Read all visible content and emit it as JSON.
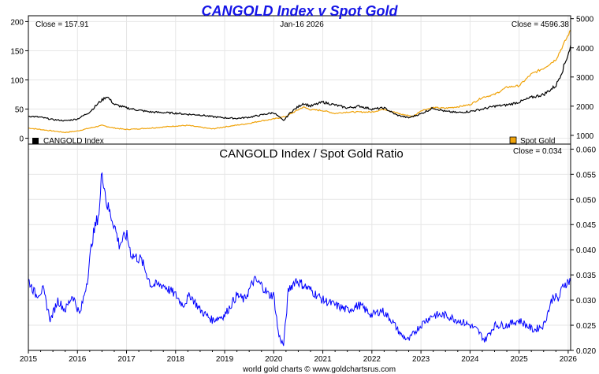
{
  "colors": {
    "cangold": "#000000",
    "gold": "#f0a30a",
    "ratio": "#0000ff",
    "title": "#1515e6",
    "grid": "#e6e6e6",
    "frame": "#000000"
  },
  "chart_data": [
    {
      "type": "line",
      "title": "CANGOLD Index v Spot Gold",
      "header_left": "Close = 157.91",
      "header_center": "Jan-16  2026",
      "header_right": "Close = 4596.38",
      "grid": true,
      "legend_position": "bottom",
      "y_left": {
        "label": "",
        "ylim": [
          -10,
          210
        ],
        "ticks": [
          0,
          50,
          100,
          150,
          200
        ]
      },
      "y_right": {
        "label": "",
        "ylim": [
          700,
          5100
        ],
        "ticks": [
          1000,
          2000,
          3000,
          4000,
          5000
        ]
      },
      "x": {
        "ticks": [
          "2015",
          "2016",
          "2017",
          "2018",
          "2019",
          "2020",
          "2021",
          "2022",
          "2023",
          "2024",
          "2025",
          "2026"
        ],
        "range": [
          2015.0,
          2026.05
        ]
      },
      "series": [
        {
          "name": "CANGOLD Index",
          "axis": "left",
          "x": [
            2015.0,
            2015.25,
            2015.5,
            2015.75,
            2016.0,
            2016.25,
            2016.45,
            2016.6,
            2016.75,
            2017.0,
            2017.25,
            2017.5,
            2017.75,
            2018.0,
            2018.25,
            2018.5,
            2018.75,
            2019.0,
            2019.25,
            2019.5,
            2019.75,
            2020.0,
            2020.2,
            2020.35,
            2020.6,
            2020.75,
            2021.0,
            2021.25,
            2021.5,
            2021.75,
            2022.0,
            2022.25,
            2022.5,
            2022.75,
            2023.0,
            2023.25,
            2023.5,
            2023.75,
            2024.0,
            2024.25,
            2024.5,
            2024.75,
            2025.0,
            2025.25,
            2025.5,
            2025.75,
            2025.9,
            2026.05
          ],
          "values": [
            38,
            36,
            32,
            30,
            33,
            45,
            62,
            72,
            58,
            52,
            48,
            45,
            44,
            43,
            41,
            40,
            37,
            35,
            34,
            36,
            40,
            44,
            30,
            45,
            60,
            55,
            62,
            57,
            52,
            55,
            50,
            52,
            40,
            35,
            42,
            52,
            46,
            44,
            46,
            50,
            55,
            57,
            62,
            70,
            75,
            90,
            120,
            158
          ]
        },
        {
          "name": "Spot Gold",
          "axis": "right",
          "x": [
            2015.0,
            2015.25,
            2015.5,
            2015.75,
            2016.0,
            2016.25,
            2016.5,
            2016.75,
            2017.0,
            2017.5,
            2018.0,
            2018.25,
            2018.75,
            2019.0,
            2019.5,
            2019.75,
            2020.0,
            2020.25,
            2020.6,
            2020.75,
            2021.0,
            2021.25,
            2021.5,
            2022.0,
            2022.25,
            2022.6,
            2022.85,
            2023.0,
            2023.25,
            2023.5,
            2023.75,
            2024.0,
            2024.25,
            2024.5,
            2024.75,
            2025.0,
            2025.25,
            2025.5,
            2025.75,
            2025.9,
            2026.05
          ],
          "values": [
            1250,
            1200,
            1150,
            1100,
            1150,
            1250,
            1340,
            1250,
            1200,
            1250,
            1320,
            1340,
            1220,
            1290,
            1410,
            1500,
            1560,
            1650,
            1970,
            1880,
            1850,
            1750,
            1800,
            1800,
            1900,
            1720,
            1650,
            1850,
            1950,
            1930,
            1980,
            2050,
            2300,
            2400,
            2650,
            2700,
            3100,
            3300,
            3600,
            4100,
            4600
          ]
        }
      ]
    },
    {
      "type": "line",
      "title": "CANGOLD Index  /  Spot Gold Ratio",
      "header_right": "Close = 0.034",
      "grid": true,
      "y_right": {
        "label": "",
        "ylim": [
          0.02,
          0.061
        ],
        "ticks": [
          0.02,
          0.025,
          0.03,
          0.035,
          0.04,
          0.045,
          0.05,
          0.055,
          0.06
        ]
      },
      "x": {
        "ticks": [
          "2015",
          "2016",
          "2017",
          "2018",
          "2019",
          "2020",
          "2021",
          "2022",
          "2023",
          "2024",
          "2025",
          "2026"
        ],
        "range": [
          2015.0,
          2026.05
        ]
      },
      "series": [
        {
          "name": "",
          "axis": "right",
          "x": [
            2015.0,
            2015.15,
            2015.3,
            2015.45,
            2015.6,
            2015.75,
            2015.9,
            2016.05,
            2016.2,
            2016.3,
            2016.45,
            2016.5,
            2016.6,
            2016.75,
            2016.85,
            2017.0,
            2017.1,
            2017.3,
            2017.5,
            2017.75,
            2018.0,
            2018.15,
            2018.3,
            2018.5,
            2018.75,
            2019.0,
            2019.25,
            2019.4,
            2019.6,
            2019.75,
            2019.9,
            2020.0,
            2020.1,
            2020.2,
            2020.3,
            2020.45,
            2020.6,
            2020.75,
            2021.0,
            2021.25,
            2021.5,
            2021.75,
            2022.0,
            2022.2,
            2022.4,
            2022.6,
            2022.75,
            2022.9,
            2023.1,
            2023.25,
            2023.5,
            2023.75,
            2024.0,
            2024.15,
            2024.3,
            2024.5,
            2024.75,
            2025.0,
            2025.15,
            2025.3,
            2025.5,
            2025.6,
            2025.7,
            2025.8,
            2025.9,
            2026.05
          ],
          "values": [
            0.034,
            0.031,
            0.032,
            0.026,
            0.03,
            0.028,
            0.031,
            0.027,
            0.034,
            0.042,
            0.048,
            0.056,
            0.049,
            0.045,
            0.041,
            0.043,
            0.039,
            0.038,
            0.033,
            0.033,
            0.031,
            0.029,
            0.031,
            0.028,
            0.026,
            0.027,
            0.031,
            0.03,
            0.034,
            0.033,
            0.031,
            0.031,
            0.023,
            0.021,
            0.032,
            0.034,
            0.033,
            0.032,
            0.03,
            0.029,
            0.028,
            0.029,
            0.027,
            0.028,
            0.026,
            0.023,
            0.022,
            0.024,
            0.026,
            0.027,
            0.027,
            0.026,
            0.025,
            0.024,
            0.022,
            0.025,
            0.025,
            0.026,
            0.025,
            0.024,
            0.025,
            0.028,
            0.031,
            0.03,
            0.033,
            0.034
          ]
        }
      ]
    }
  ],
  "footer": {
    "credit": "world gold charts © www.goldchartsrus.com"
  }
}
